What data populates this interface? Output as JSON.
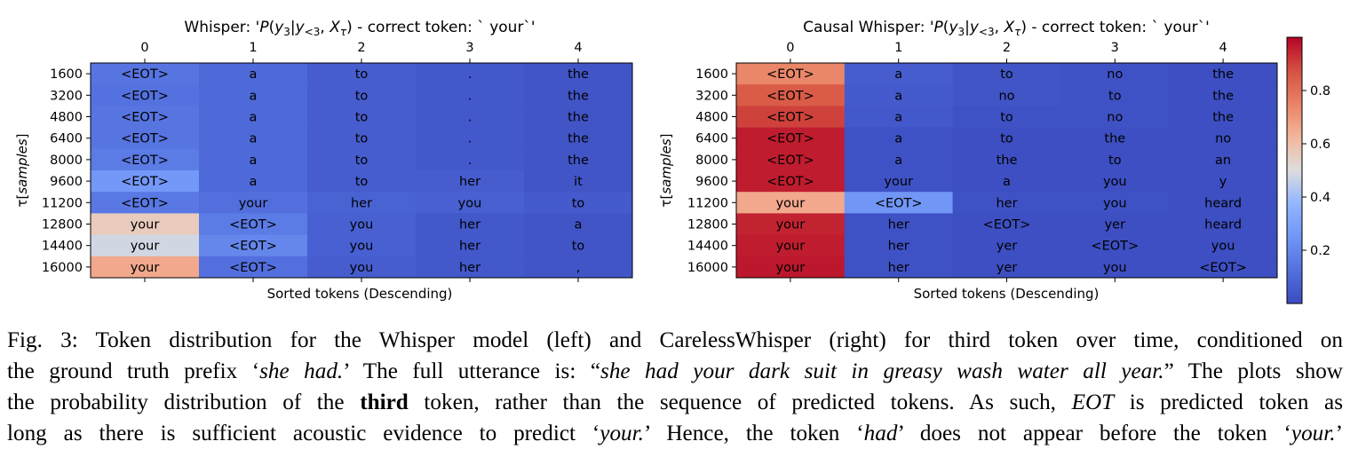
{
  "chart_data": [
    {
      "type": "heatmap",
      "title": "Whisper: 'P(y₃|y₍<3₎, Xτ) - correct token: ` your`'",
      "title_parts": {
        "prefix": "Whisper: '",
        "suffix": " - correct token: ` your`'"
      },
      "xlabel": "Sorted tokens (Descending)",
      "ylabel": "τ[samples]",
      "x_ticks": [
        "0",
        "1",
        "2",
        "3",
        "4"
      ],
      "y_ticks": [
        "1600",
        "3200",
        "4800",
        "6400",
        "8000",
        "9600",
        "11200",
        "12800",
        "14400",
        "16000"
      ],
      "tokens": [
        [
          "<EOT>",
          "a",
          "to",
          ".",
          "the"
        ],
        [
          "<EOT>",
          "a",
          "to",
          ".",
          "the"
        ],
        [
          "<EOT>",
          "a",
          "to",
          ".",
          "the"
        ],
        [
          "<EOT>",
          "a",
          "to",
          ".",
          "the"
        ],
        [
          "<EOT>",
          "a",
          "to",
          ".",
          "the"
        ],
        [
          "<EOT>",
          "a",
          "to",
          "her",
          "it"
        ],
        [
          "<EOT>",
          "your",
          "her",
          "you",
          "to"
        ],
        [
          "your",
          "<EOT>",
          "you",
          "her",
          "a"
        ],
        [
          "your",
          "<EOT>",
          "you",
          "her",
          "to"
        ],
        [
          "your",
          "<EOT>",
          "you",
          "her",
          ","
        ]
      ],
      "probabilities": [
        [
          0.14,
          0.1,
          0.06,
          0.04,
          0.03
        ],
        [
          0.13,
          0.1,
          0.06,
          0.04,
          0.03
        ],
        [
          0.14,
          0.1,
          0.06,
          0.04,
          0.03
        ],
        [
          0.14,
          0.1,
          0.06,
          0.04,
          0.03
        ],
        [
          0.16,
          0.1,
          0.06,
          0.04,
          0.03
        ],
        [
          0.26,
          0.1,
          0.06,
          0.06,
          0.03
        ],
        [
          0.15,
          0.12,
          0.08,
          0.07,
          0.05
        ],
        [
          0.56,
          0.16,
          0.07,
          0.04,
          0.03
        ],
        [
          0.48,
          0.2,
          0.07,
          0.04,
          0.03
        ],
        [
          0.66,
          0.12,
          0.06,
          0.04,
          0.03
        ]
      ]
    },
    {
      "type": "heatmap",
      "title": "Causal Whisper: 'P(y₃|y₍<3₎, Xτ) - correct token: ` your`'",
      "title_parts": {
        "prefix": "Causal Whisper: '",
        "suffix": " - correct token: ` your`'"
      },
      "xlabel": "Sorted tokens (Descending)",
      "ylabel": "τ[samples]",
      "x_ticks": [
        "0",
        "1",
        "2",
        "3",
        "4"
      ],
      "y_ticks": [
        "1600",
        "3200",
        "4800",
        "6400",
        "8000",
        "9600",
        "11200",
        "12800",
        "14400",
        "16000"
      ],
      "tokens": [
        [
          "<EOT>",
          "a",
          "to",
          "no",
          "the"
        ],
        [
          "<EOT>",
          "a",
          "no",
          "to",
          "the"
        ],
        [
          "<EOT>",
          "a",
          "to",
          "no",
          "the"
        ],
        [
          "<EOT>",
          "a",
          "to",
          "the",
          "no"
        ],
        [
          "<EOT>",
          "a",
          "the",
          "to",
          "an"
        ],
        [
          "<EOT>",
          "your",
          "a",
          "you",
          "y"
        ],
        [
          "your",
          "<EOT>",
          "her",
          "you",
          "heard"
        ],
        [
          "your",
          "her",
          "<EOT>",
          "yer",
          "heard"
        ],
        [
          "your",
          "her",
          "yer",
          "<EOT>",
          "you"
        ],
        [
          "your",
          "her",
          "yer",
          "you",
          "<EOT>"
        ]
      ],
      "probabilities": [
        [
          0.74,
          0.06,
          0.03,
          0.02,
          0.01
        ],
        [
          0.85,
          0.05,
          0.03,
          0.02,
          0.01
        ],
        [
          0.9,
          0.04,
          0.02,
          0.02,
          0.01
        ],
        [
          0.96,
          0.02,
          0.01,
          0.01,
          0.01
        ],
        [
          0.96,
          0.02,
          0.01,
          0.01,
          0.01
        ],
        [
          0.96,
          0.02,
          0.01,
          0.01,
          0.01
        ],
        [
          0.66,
          0.25,
          0.02,
          0.02,
          0.01
        ],
        [
          0.95,
          0.02,
          0.01,
          0.01,
          0.01
        ],
        [
          0.96,
          0.02,
          0.01,
          0.01,
          0.01
        ],
        [
          0.97,
          0.02,
          0.01,
          0.01,
          0.01
        ]
      ]
    }
  ],
  "colorbar": {
    "colormap": "coolwarm",
    "range": [
      0.0,
      1.0
    ],
    "ticks": [
      "0.2",
      "0.4",
      "0.6",
      "0.8"
    ],
    "tick_values": [
      0.2,
      0.4,
      0.6,
      0.8
    ]
  },
  "caption": {
    "label": "Fig. 3:",
    "line1": " Token distribution for the Whisper model (left) and CarelessWhisper (right) for third token over time, conditioned on",
    "line2a": "the ground truth prefix ‘",
    "line2b": "she had.",
    "line2c": "’ The full utterance is: “",
    "line2d": "she had your dark suit in greasy wash water all year.",
    "line2e": "” The plots show",
    "line3a": "the probability distribution of the ",
    "line3b": "third",
    "line3c": " token, rather than the sequence of predicted tokens. As such, ",
    "line3d": "EOT",
    "line3e": " is predicted token as",
    "line4a": "long as there is sufficient acoustic evidence to predict ‘",
    "line4b": "your.",
    "line4c": "’ Hence, the token ‘",
    "line4d": "had",
    "line4e": "’ does not appear before the token ‘",
    "line4f": "your.",
    "line4g": "’"
  }
}
